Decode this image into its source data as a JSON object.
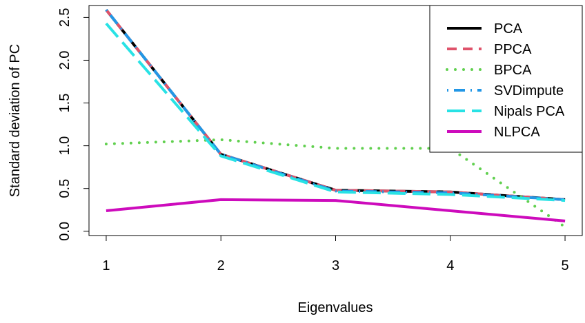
{
  "chart_data": {
    "type": "line",
    "title": "",
    "xlabel": "Eigenvalues",
    "ylabel": "Standard deviation of PC",
    "x": [
      1,
      2,
      3,
      4,
      5
    ],
    "xlim": [
      0.85,
      5.15
    ],
    "ylim": [
      -0.05,
      2.64
    ],
    "xticks": [
      "1",
      "2",
      "3",
      "4",
      "5"
    ],
    "yticks": [
      "0.0",
      "0.5",
      "1.0",
      "1.5",
      "2.0",
      "2.5"
    ],
    "legend_position": "top-right",
    "series": [
      {
        "name": "PCA",
        "color": "#000000",
        "style": "solid",
        "values": [
          2.59,
          0.9,
          0.48,
          0.46,
          0.37
        ]
      },
      {
        "name": "PPCA",
        "color": "#DF536B",
        "style": "dashed",
        "values": [
          2.59,
          0.9,
          0.48,
          0.46,
          0.37
        ]
      },
      {
        "name": "BPCA",
        "color": "#61D04F",
        "style": "dotted",
        "values": [
          1.02,
          1.07,
          0.97,
          0.97,
          0.05
        ]
      },
      {
        "name": "SVDimpute",
        "color": "#2297E6",
        "style": "dotdash",
        "values": [
          2.59,
          0.9,
          0.47,
          0.45,
          0.37
        ]
      },
      {
        "name": "Nipals PCA",
        "color": "#28E2E5",
        "style": "longdash",
        "values": [
          2.43,
          0.88,
          0.46,
          0.43,
          0.36
        ]
      },
      {
        "name": "NLPCA",
        "color": "#CD0BBC",
        "style": "solid",
        "values": [
          0.24,
          0.37,
          0.36,
          0.24,
          0.12
        ]
      }
    ]
  }
}
